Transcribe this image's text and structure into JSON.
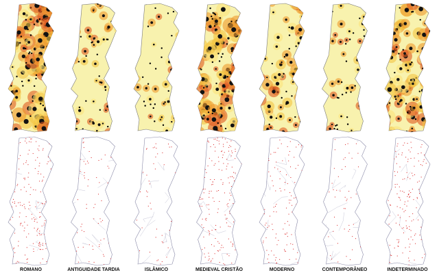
{
  "periods": {
    "labels": [
      "ROMANO",
      "ANTIGUIDADE TARDIA",
      "ISLÂMICO",
      "MEDIEVAL CRISTÃO",
      "MODERNO",
      "CONTEMPORÂNEO",
      "INDETERMINADO"
    ]
  }
}
